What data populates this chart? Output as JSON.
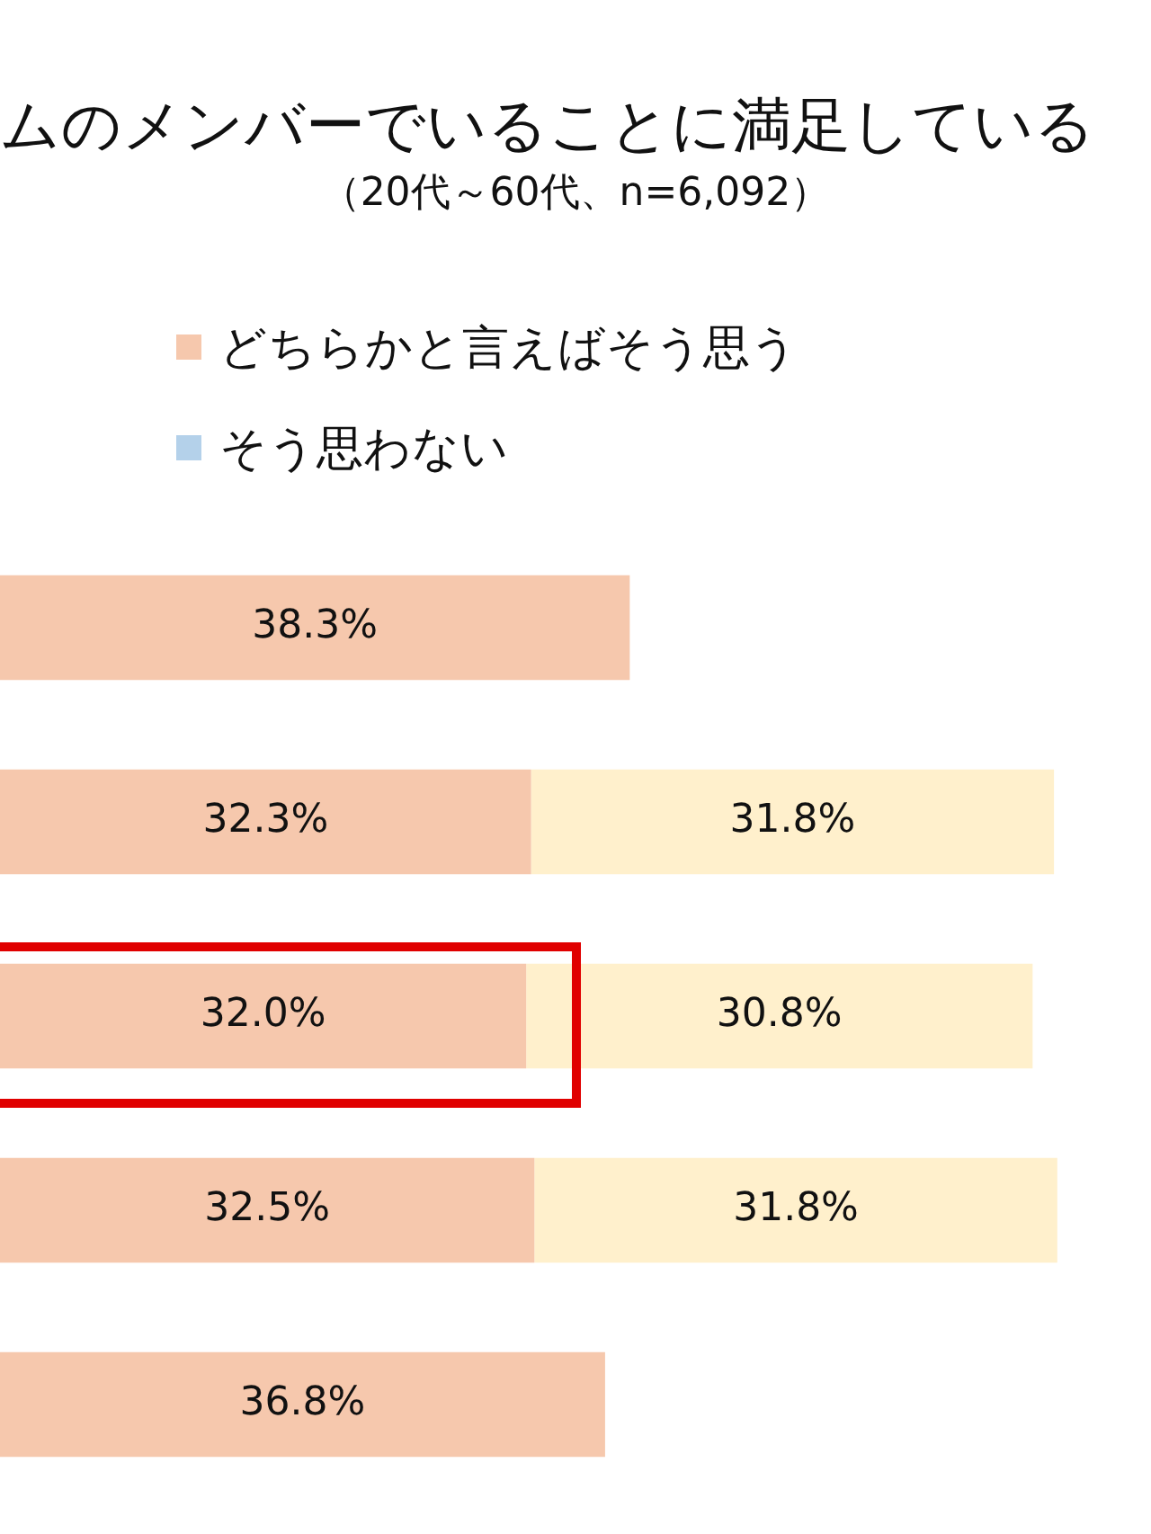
{
  "chart_data": {
    "type": "bar",
    "orientation": "horizontal",
    "stacked": true,
    "title": "ムのメンバーでいることに満足している",
    "subtitle": "（20代～60代、n=6,092）",
    "legend": "top left",
    "categories": [
      null,
      null,
      null,
      null,
      null
    ],
    "series": [
      {
        "name": "どちらかと言えばそう思う",
        "color": "#f6c8ad",
        "values": [
          38.3,
          32.3,
          32.0,
          32.5,
          36.8
        ],
        "value_labels": [
          "38.3%",
          "32.3%",
          "32.0%",
          "32.5%",
          "36.8%"
        ]
      },
      {
        "color": "#fff0cc",
        "values": [
          null,
          31.8,
          30.8,
          31.8,
          null
        ],
        "value_labels": [
          null,
          "31.8%",
          "30.8%",
          "31.8%",
          null
        ]
      },
      {
        "name": "そう思わない",
        "color": "#b4d1ea",
        "values": [
          null,
          null,
          null,
          null,
          null
        ]
      }
    ]
  }
}
